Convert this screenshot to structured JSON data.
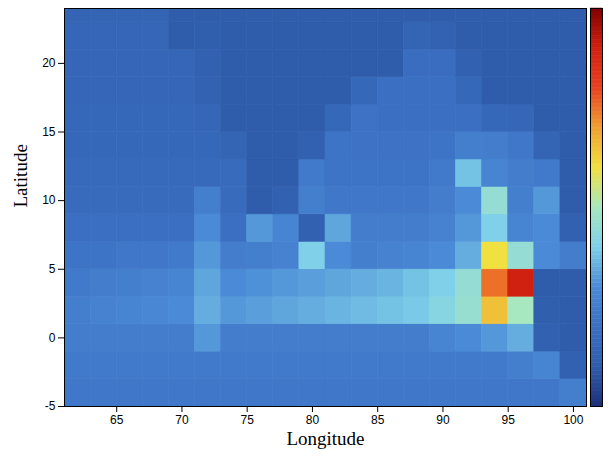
{
  "chart_data": {
    "type": "heatmap",
    "x_label": "Longitude",
    "y_label": "Latitude",
    "xlim": [
      61,
      101
    ],
    "xticks": [
      65,
      70,
      75,
      80,
      85,
      90,
      95,
      100
    ],
    "ylim": [
      -5,
      24
    ],
    "yticks": [
      -5,
      0,
      5,
      10,
      15,
      20
    ],
    "x_edges": [
      61,
      63,
      65,
      67,
      69,
      71,
      73,
      75,
      77,
      79,
      81,
      83,
      85,
      87,
      89,
      91,
      93,
      95,
      97,
      99,
      101
    ],
    "y_edges": [
      -5,
      -3,
      -1,
      1,
      3,
      5,
      7,
      9,
      11,
      13,
      15,
      17,
      19,
      21,
      23,
      24
    ],
    "values": [
      [
        2.3,
        2.3,
        2.3,
        2.3,
        2.3,
        2.3,
        2.3,
        2.3,
        2.3,
        2.3,
        2.3,
        2.3,
        2.3,
        2.3,
        2.3,
        2.3,
        2.3,
        2.3,
        2.3,
        2.6
      ],
      [
        2.4,
        2.4,
        2.4,
        2.4,
        2.4,
        2.4,
        2.4,
        2.4,
        2.4,
        2.4,
        2.4,
        2.4,
        2.4,
        2.4,
        2.4,
        2.4,
        2.4,
        2.6,
        2.8,
        1.2
      ],
      [
        2.5,
        2.5,
        2.5,
        2.5,
        2.5,
        3.2,
        2.5,
        2.5,
        2.5,
        2.5,
        2.5,
        2.5,
        2.5,
        2.5,
        2.8,
        3.0,
        3.2,
        3.5,
        1.2,
        1.0
      ],
      [
        2.6,
        2.7,
        2.8,
        2.9,
        3.0,
        3.5,
        3.2,
        3.3,
        3.4,
        3.5,
        3.6,
        3.7,
        3.8,
        3.9,
        4.2,
        4.6,
        6.5,
        5.0,
        1.1,
        1.0
      ],
      [
        2.4,
        2.5,
        2.6,
        2.7,
        2.8,
        3.4,
        3.0,
        3.1,
        3.2,
        3.3,
        3.4,
        3.5,
        3.6,
        3.8,
        4.0,
        4.5,
        7.5,
        9.0,
        1.0,
        1.0
      ],
      [
        2.2,
        2.2,
        2.3,
        2.3,
        2.4,
        3.2,
        2.5,
        2.6,
        2.7,
        4.0,
        3.0,
        2.6,
        2.7,
        2.8,
        3.0,
        3.5,
        6.0,
        4.5,
        3.0,
        2.5
      ],
      [
        2.0,
        2.0,
        2.0,
        2.0,
        2.0,
        3.0,
        2.0,
        3.2,
        2.8,
        1.2,
        3.4,
        2.5,
        2.5,
        2.5,
        2.7,
        3.2,
        4.0,
        2.8,
        3.0,
        1.2
      ],
      [
        1.8,
        1.8,
        1.8,
        1.8,
        1.8,
        2.6,
        1.8,
        1.0,
        1.2,
        2.6,
        2.3,
        2.3,
        2.3,
        2.3,
        2.5,
        3.0,
        4.5,
        2.6,
        3.2,
        1.0
      ],
      [
        1.7,
        1.7,
        1.7,
        1.7,
        1.7,
        1.7,
        1.8,
        1.0,
        1.0,
        2.4,
        2.2,
        2.2,
        2.2,
        2.2,
        2.4,
        3.8,
        2.8,
        2.5,
        2.4,
        1.0
      ],
      [
        1.6,
        1.6,
        1.6,
        1.6,
        1.6,
        1.6,
        1.4,
        1.0,
        1.0,
        1.2,
        2.2,
        2.1,
        2.1,
        2.1,
        2.2,
        2.6,
        2.5,
        2.3,
        1.4,
        1.0
      ],
      [
        1.6,
        1.6,
        1.6,
        1.6,
        1.6,
        1.5,
        1.0,
        1.0,
        1.0,
        1.0,
        1.6,
        2.1,
        2.0,
        2.0,
        2.0,
        2.0,
        1.6,
        1.5,
        1.0,
        1.0
      ],
      [
        1.5,
        1.5,
        1.5,
        1.5,
        1.5,
        1.3,
        1.0,
        1.0,
        1.0,
        1.0,
        1.0,
        1.6,
        2.0,
        2.0,
        2.0,
        1.6,
        1.0,
        1.0,
        1.0,
        1.0
      ],
      [
        1.5,
        1.5,
        1.5,
        1.5,
        1.5,
        1.2,
        1.0,
        1.0,
        1.0,
        1.0,
        1.0,
        1.0,
        1.0,
        1.9,
        1.9,
        1.2,
        1.0,
        1.0,
        1.0,
        1.0
      ],
      [
        1.5,
        1.5,
        1.5,
        1.5,
        1.0,
        1.1,
        1.0,
        1.0,
        1.0,
        1.0,
        1.0,
        1.0,
        1.0,
        1.4,
        1.3,
        1.0,
        1.0,
        1.0,
        1.0,
        1.0
      ],
      [
        1.4,
        1.4,
        1.4,
        1.4,
        1.0,
        1.0,
        1.0,
        1.0,
        1.0,
        1.0,
        1.0,
        1.0,
        1.0,
        1.0,
        1.0,
        1.0,
        1.0,
        1.0,
        1.0,
        1.0
      ]
    ],
    "colorbar": {
      "range": [
        0,
        10
      ]
    }
  }
}
